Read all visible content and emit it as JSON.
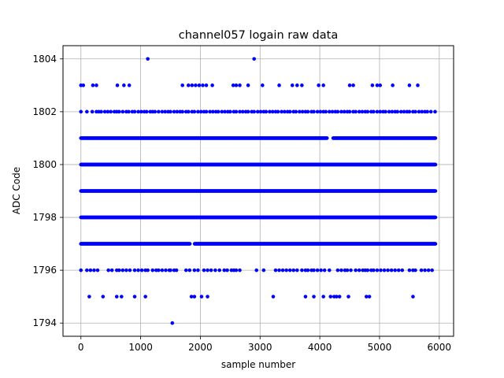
{
  "chart_data": {
    "type": "scatter",
    "title": "channel057 logain raw data",
    "xlabel": "sample number",
    "ylabel": "ADC Code",
    "xlim": [
      -300,
      6240
    ],
    "ylim": [
      1793.5,
      1804.5
    ],
    "xticks": [
      0,
      1000,
      2000,
      3000,
      4000,
      5000,
      6000
    ],
    "yticks": [
      1794,
      1796,
      1798,
      1800,
      1802,
      1804
    ],
    "grid": true,
    "marker_color": "#0000ff",
    "n_samples": 5940,
    "dense_levels": [
      1797,
      1798,
      1799,
      1800,
      1801
    ],
    "sparse_levels": {
      "1802": [
        0,
        100,
        190,
        260,
        300,
        340,
        400,
        450,
        500,
        560,
        600,
        640,
        700,
        760,
        800,
        860,
        900,
        960,
        1010,
        1060,
        1100,
        1160,
        1200,
        1240,
        1300,
        1360,
        1410,
        1460,
        1500,
        1560,
        1610,
        1660,
        1700,
        1760,
        1800,
        1860,
        1900,
        1960,
        2010,
        2060,
        2100,
        2160,
        2210,
        2260,
        2300,
        2360,
        2410,
        2460,
        2500,
        2560,
        2600,
        2660,
        2710,
        2760,
        2800,
        2860,
        2900,
        2960,
        3010,
        3060,
        3100,
        3160,
        3210,
        3260,
        3300,
        3360,
        3410,
        3460,
        3500,
        3560,
        3600,
        3660,
        3710,
        3760,
        3800,
        3860,
        3900,
        3960,
        4010,
        4060,
        4100,
        4160,
        4210,
        4260,
        4300,
        4360,
        4410,
        4460,
        4500,
        4560,
        4600,
        4660,
        4710,
        4760,
        4800,
        4860,
        4900,
        4960,
        5010,
        5060,
        5100,
        5160,
        5210,
        5260,
        5300,
        5360,
        5410,
        5460,
        5500,
        5560,
        5600,
        5660,
        5710,
        5760,
        5800,
        5860,
        5930
      ],
      "1803": [
        0,
        40,
        200,
        260,
        610,
        720,
        810,
        1700,
        1800,
        1860,
        1920,
        1980,
        2040,
        2100,
        2200,
        2550,
        2600,
        2660,
        2800,
        3040,
        3320,
        3540,
        3620,
        3700,
        3980,
        4060,
        4500,
        4560,
        4880,
        4960,
        5010,
        5220,
        5500,
        5640
      ],
      "1796": [
        0,
        100,
        160,
        220,
        280,
        460,
        520,
        600,
        640,
        700,
        760,
        820,
        900,
        960,
        1020,
        1080,
        1120,
        1200,
        1260,
        1300,
        1360,
        1420,
        1480,
        1500,
        1560,
        1600,
        1760,
        1820,
        1900,
        1960,
        2060,
        2120,
        2180,
        2250,
        2320,
        2400,
        2450,
        2520,
        2560,
        2600,
        2660,
        2940,
        3060,
        3260,
        3320,
        3380,
        3440,
        3500,
        3560,
        3620,
        3700,
        3760,
        3800,
        3860,
        3900,
        3960,
        4020,
        4080,
        4160,
        4300,
        4360,
        4420,
        4460,
        4520,
        4600,
        4660,
        4720,
        4760,
        4800,
        4860,
        4900,
        4960,
        5020,
        5080,
        5140,
        5200,
        5260,
        5320,
        5380,
        5500,
        5560,
        5600,
        5700,
        5760,
        5820,
        5880
      ],
      "1795": [
        140,
        370,
        600,
        680,
        900,
        1080,
        1850,
        1900,
        2020,
        2120,
        3220,
        3760,
        3900,
        4060,
        4180,
        4240,
        4280,
        4330,
        4480,
        4780,
        4830,
        5560
      ],
      "1804": [
        1120,
        2900
      ],
      "1794": [
        1530
      ]
    }
  }
}
